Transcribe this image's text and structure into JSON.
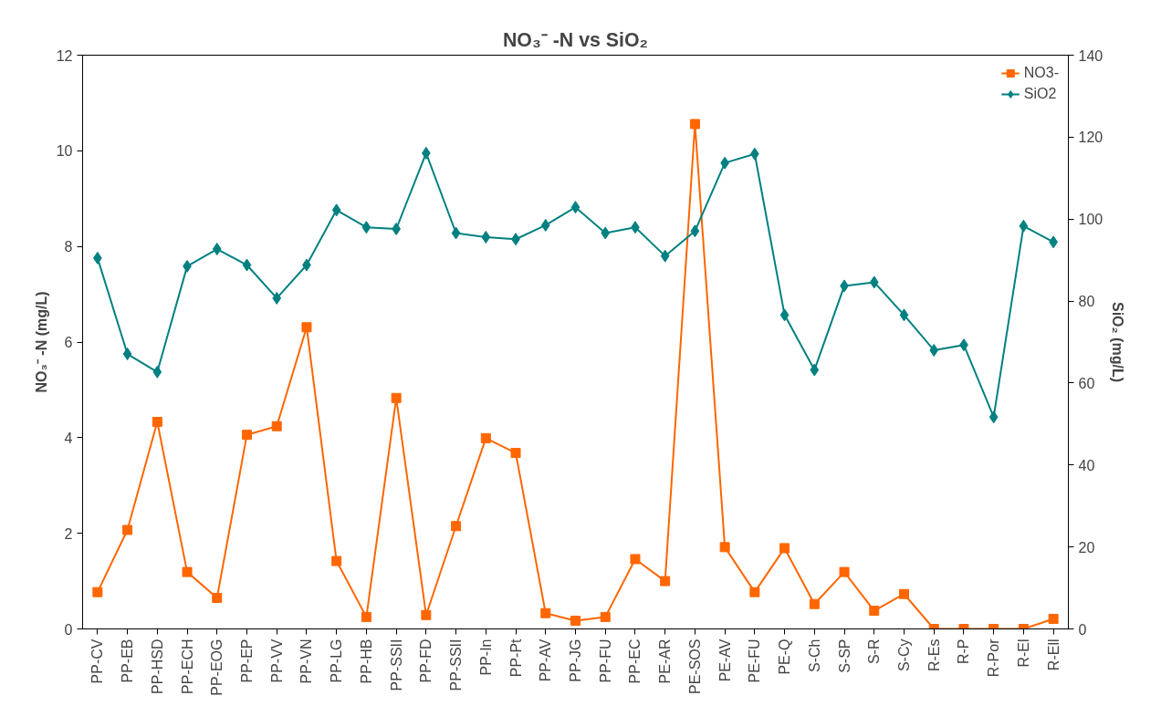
{
  "chart_data": {
    "type": "line",
    "title": "NO₃⁻ -N vs SiO₂",
    "ylabel": "NO₃⁻ -N (mg/L)",
    "y2label": "SiO₂ (mg/L)",
    "categories": [
      "PP-CV",
      "PP-EB",
      "PP-HSD",
      "PP-ECH",
      "PP-EOG",
      "PP-EP",
      "PP-VV",
      "PP-VN",
      "PP-LG",
      "PP-HB",
      "PP-SSII",
      "PP-FD",
      "PP-SSII",
      "PP-In",
      "PP-Pt",
      "PP-AV",
      "PP-JG",
      "PP-FU",
      "PP-EC",
      "PE-AR",
      "PE-SOS",
      "PE-AV",
      "PE-FU",
      "PE-Q",
      "S-Ch",
      "S-SP",
      "S-R",
      "S-Cy",
      "R-Es",
      "R-P",
      "R-Por",
      "R-El",
      "R-Ell"
    ],
    "series": [
      {
        "name": "NO3-",
        "color": "#ff6600",
        "marker": "square",
        "values": [
          0.77,
          2.07,
          4.33,
          1.19,
          0.65,
          4.06,
          4.24,
          6.31,
          1.42,
          0.25,
          4.83,
          0.29,
          2.15,
          3.99,
          3.68,
          0.33,
          0.17,
          0.25,
          1.46,
          1.0,
          10.56,
          1.71,
          0.77,
          1.69,
          0.52,
          1.19,
          0.38,
          0.73,
          0,
          0,
          0,
          0,
          0.21
        ]
      },
      {
        "name": "SiO2",
        "color": "#008080",
        "marker": "diamond",
        "axis": "y2",
        "values": [
          90.5,
          67.1,
          62.7,
          88.5,
          92.7,
          88.8,
          80.7,
          88.8,
          102.2,
          98.0,
          97.6,
          116.1,
          96.6,
          95.6,
          95.1,
          98.5,
          102.9,
          96.6,
          98.0,
          91.0,
          97.1,
          113.7,
          115.9,
          76.6,
          63.2,
          83.7,
          84.6,
          76.6,
          68.0,
          69.3,
          51.7,
          98.3,
          94.4
        ]
      }
    ],
    "ylim": [
      0,
      12
    ],
    "yticks": [
      0,
      2,
      4,
      6,
      8,
      10,
      12
    ],
    "y2lim": [
      0,
      140
    ],
    "y2ticks": [
      0,
      20,
      40,
      60,
      80,
      100,
      120,
      140
    ],
    "grid": false,
    "legend": "top right",
    "line_style": "solid"
  }
}
